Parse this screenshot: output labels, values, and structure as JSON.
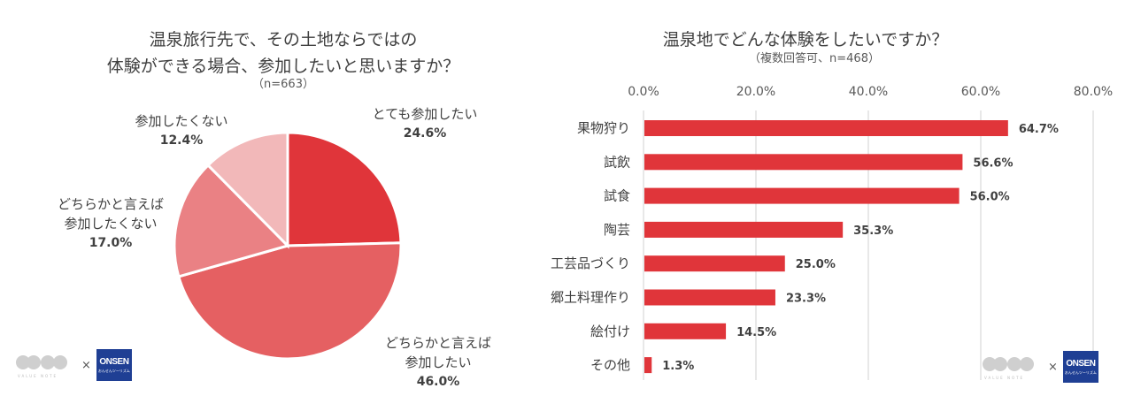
{
  "chart_data": [
    {
      "type": "pie",
      "title_lines": [
        "温泉旅行先で、その土地ならではの",
        "体験ができる場合、参加したいと思いますか？"
      ],
      "subtitle": "（n=663）",
      "start_angle_note": "clockwise from top",
      "slices": [
        {
          "label_lines": [
            "とても参加したい"
          ],
          "value": 24.6,
          "value_label": "24.6%",
          "color": "#e0353a"
        },
        {
          "label_lines": [
            "どちらかと言えば",
            "参加したい"
          ],
          "value": 46.0,
          "value_label": "46.0%",
          "color": "#e56062"
        },
        {
          "label_lines": [
            "どちらかと言えば",
            "参加したくない"
          ],
          "value": 17.0,
          "value_label": "17.0%",
          "color": "#ea8184"
        },
        {
          "label_lines": [
            "参加したくない"
          ],
          "value": 12.4,
          "value_label": "12.4%",
          "color": "#f2b8b9"
        }
      ]
    },
    {
      "type": "bar",
      "orientation": "horizontal",
      "title": "温泉地でどんな体験をしたいですか？",
      "subtitle": "（複数回答可、n=468）",
      "categories": [
        "果物狩り",
        "試飲",
        "試食",
        "陶芸",
        "工芸品づくり",
        "郷土料理作り",
        "絵付け",
        "その他"
      ],
      "values": [
        64.7,
        56.6,
        56.0,
        35.3,
        25.0,
        23.3,
        14.5,
        1.3
      ],
      "value_labels": [
        "64.7%",
        "56.6%",
        "56.0%",
        "35.3%",
        "25.0%",
        "23.3%",
        "14.5%",
        "1.3%"
      ],
      "xlim": [
        0,
        80
      ],
      "xticks": [
        0,
        20,
        40,
        60,
        80
      ],
      "xtick_labels": [
        "0.0%",
        "20.0%",
        "40.0%",
        "60.0%",
        "80.0%"
      ],
      "xaxis_position": "top",
      "grid": true,
      "bar_color": "#e0353a",
      "xlabel": "",
      "ylabel": ""
    }
  ],
  "logos": {
    "brand_left_caption": "VALUE  NOTE",
    "times": "×",
    "onsen_main": "ONSEN",
    "onsen_sub": "おんせんツーリズム"
  }
}
